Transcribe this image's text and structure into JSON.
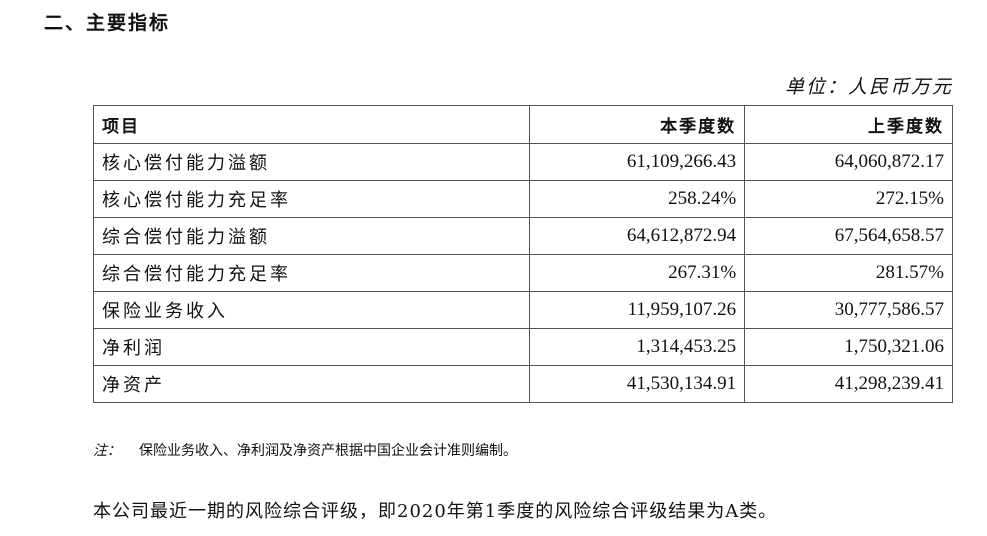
{
  "section_title": "二、主要指标",
  "unit": "单位：人民币万元",
  "table": {
    "headers": [
      "项目",
      "本季度数",
      "上季度数"
    ],
    "rows": [
      [
        "核心偿付能力溢额",
        "61,109,266.43",
        "64,060,872.17"
      ],
      [
        "核心偿付能力充足率",
        "258.24%",
        "272.15%"
      ],
      [
        "综合偿付能力溢额",
        "64,612,872.94",
        "67,564,658.57"
      ],
      [
        "综合偿付能力充足率",
        "267.31%",
        "281.57%"
      ],
      [
        "保险业务收入",
        "11,959,107.26",
        "30,777,586.57"
      ],
      [
        "净利润",
        "1,314,453.25",
        "1,750,321.06"
      ],
      [
        "净资产",
        "41,530,134.91",
        "41,298,239.41"
      ]
    ]
  },
  "note": {
    "label": "注：",
    "text": "保险业务收入、净利润及净资产根据中国企业会计准则编制。"
  },
  "paragraph": "本公司最近一期的风险综合评级，即2020年第1季度的风险综合评级结果为A类。"
}
